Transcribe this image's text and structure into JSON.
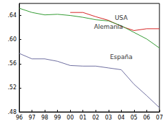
{
  "chart_data": {
    "type": "line",
    "categories": [
      "96",
      "97",
      "98",
      "99",
      "00",
      "01",
      "02",
      "03",
      "04",
      "05",
      "06",
      "07"
    ],
    "series": [
      {
        "name": "USA",
        "color": "#d62020",
        "values": [
          null,
          null,
          null,
          null,
          0.645,
          0.645,
          0.638,
          0.632,
          0.622,
          0.615,
          0.618,
          0.618
        ]
      },
      {
        "name": "Alemania",
        "color": "#2f9a2f",
        "values": [
          0.652,
          0.645,
          0.641,
          0.642,
          0.64,
          0.637,
          0.633,
          0.631,
          0.623,
          0.612,
          0.601,
          0.586
        ]
      },
      {
        "name": "España",
        "color": "#6b6b9e",
        "values": [
          0.577,
          0.568,
          0.568,
          0.564,
          0.557,
          0.556,
          0.556,
          0.553,
          0.55,
          0.526,
          0.507,
          0.487
        ]
      }
    ],
    "ylim": [
      0.48,
      0.66
    ],
    "yticks": [
      {
        "value": 0.48,
        "label": ".48"
      },
      {
        "value": 0.52,
        "label": ".52"
      },
      {
        "value": 0.56,
        "label": ".56"
      },
      {
        "value": 0.6,
        "label": ".60"
      },
      {
        "value": 0.64,
        "label": ".64"
      }
    ],
    "grid": false
  }
}
